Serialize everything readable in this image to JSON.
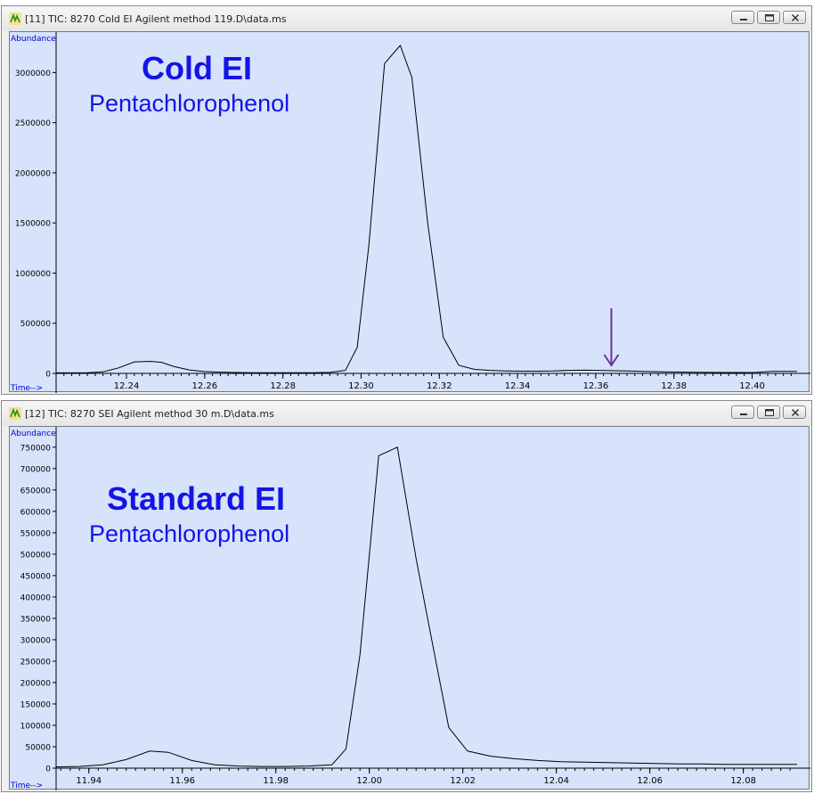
{
  "windows": [
    {
      "title": "[11] TIC: 8270 Cold EI Agilent method 119.D\\data.ms",
      "overlay_title": "Cold EI",
      "overlay_subtitle": "Pentachlorophenol",
      "marker_color": "#7030a0"
    },
    {
      "title": "[12] TIC: 8270 SEI Agilent method 30 m.D\\data.ms",
      "overlay_title": "Standard EI",
      "overlay_subtitle": "Pentachlorophenol"
    }
  ],
  "chart_data": [
    {
      "type": "line",
      "ylabel": "Abundance",
      "xlabel": "Time-->",
      "xlim": [
        12.222,
        12.4115
      ],
      "ylim": [
        0,
        3350000
      ],
      "xticks": [
        12.24,
        12.26,
        12.28,
        12.3,
        12.32,
        12.34,
        12.36,
        12.38,
        12.4
      ],
      "xtick_labels": [
        "12.24",
        "12.26",
        "12.28",
        "12.30",
        "12.32",
        "12.34",
        "12.36",
        "12.38",
        "12.40"
      ],
      "yticks": [
        0,
        500000,
        1000000,
        1500000,
        2000000,
        2500000,
        3000000
      ],
      "ytick_labels": [
        "0",
        "500000",
        "1000000",
        "1500000",
        "2000000",
        "2500000",
        "3000000"
      ],
      "annotation": {
        "type": "arrow",
        "x": 12.364,
        "y_from": 650000,
        "y_to": 80000
      },
      "series": [
        {
          "x": [
            12.222,
            12.226,
            12.23,
            12.234,
            12.238,
            12.242,
            12.246,
            12.249,
            12.252,
            12.256,
            12.26,
            12.264,
            12.268,
            12.272,
            12.276,
            12.28,
            12.284,
            12.288,
            12.292,
            12.296,
            12.299,
            12.302,
            12.306,
            12.31,
            12.313,
            12.317,
            12.321,
            12.325,
            12.329,
            12.333,
            12.337,
            12.341,
            12.345,
            12.349,
            12.353,
            12.357,
            12.361,
            12.365,
            12.369,
            12.373,
            12.377,
            12.381,
            12.385,
            12.389,
            12.393,
            12.397,
            12.401,
            12.405,
            12.4115
          ],
          "values": [
            5000,
            5000,
            6000,
            15000,
            55000,
            115000,
            120000,
            110000,
            70000,
            35000,
            18000,
            12000,
            9000,
            7000,
            6000,
            6000,
            6000,
            7000,
            10000,
            30000,
            260000,
            1280000,
            3090000,
            3270000,
            2950000,
            1510000,
            360000,
            80000,
            40000,
            30000,
            25000,
            22000,
            22000,
            24000,
            30000,
            32000,
            30000,
            27000,
            23000,
            19000,
            15000,
            13000,
            11000,
            10000,
            9000,
            9000,
            10000,
            20000,
            20000
          ]
        }
      ]
    },
    {
      "type": "line",
      "ylabel": "Abundance",
      "xlabel": "Time-->",
      "xlim": [
        11.933,
        12.0915
      ],
      "ylim": [
        0,
        785000
      ],
      "xticks": [
        11.94,
        11.96,
        11.98,
        12.0,
        12.02,
        12.04,
        12.06,
        12.08
      ],
      "xtick_labels": [
        "11.94",
        "11.96",
        "11.98",
        "12.00",
        "12.02",
        "12.04",
        "12.06",
        "12.08"
      ],
      "yticks": [
        0,
        50000,
        100000,
        150000,
        200000,
        250000,
        300000,
        350000,
        400000,
        450000,
        500000,
        550000,
        600000,
        650000,
        700000,
        750000
      ],
      "ytick_labels": [
        "0",
        "50000",
        "100000",
        "150000",
        "200000",
        "250000",
        "300000",
        "350000",
        "400000",
        "450000",
        "500000",
        "550000",
        "600000",
        "650000",
        "700000",
        "750000"
      ],
      "series": [
        {
          "x": [
            11.933,
            11.938,
            11.943,
            11.948,
            11.953,
            11.957,
            11.962,
            11.967,
            11.972,
            11.977,
            11.982,
            11.987,
            11.992,
            11.995,
            11.998,
            12.002,
            12.006,
            12.01,
            12.013,
            12.017,
            12.021,
            12.026,
            12.031,
            12.036,
            12.041,
            12.046,
            12.051,
            12.056,
            12.061,
            12.066,
            12.071,
            12.076,
            12.081,
            12.086,
            12.0915
          ],
          "values": [
            3000,
            4000,
            8000,
            20000,
            40000,
            37000,
            18000,
            8000,
            5000,
            4000,
            4000,
            5000,
            8000,
            45000,
            265000,
            730000,
            750000,
            490000,
            320000,
            95000,
            40000,
            28000,
            22000,
            18000,
            15000,
            14000,
            13000,
            12000,
            11000,
            10000,
            10000,
            9000,
            9000,
            9000,
            9000
          ]
        }
      ]
    }
  ]
}
